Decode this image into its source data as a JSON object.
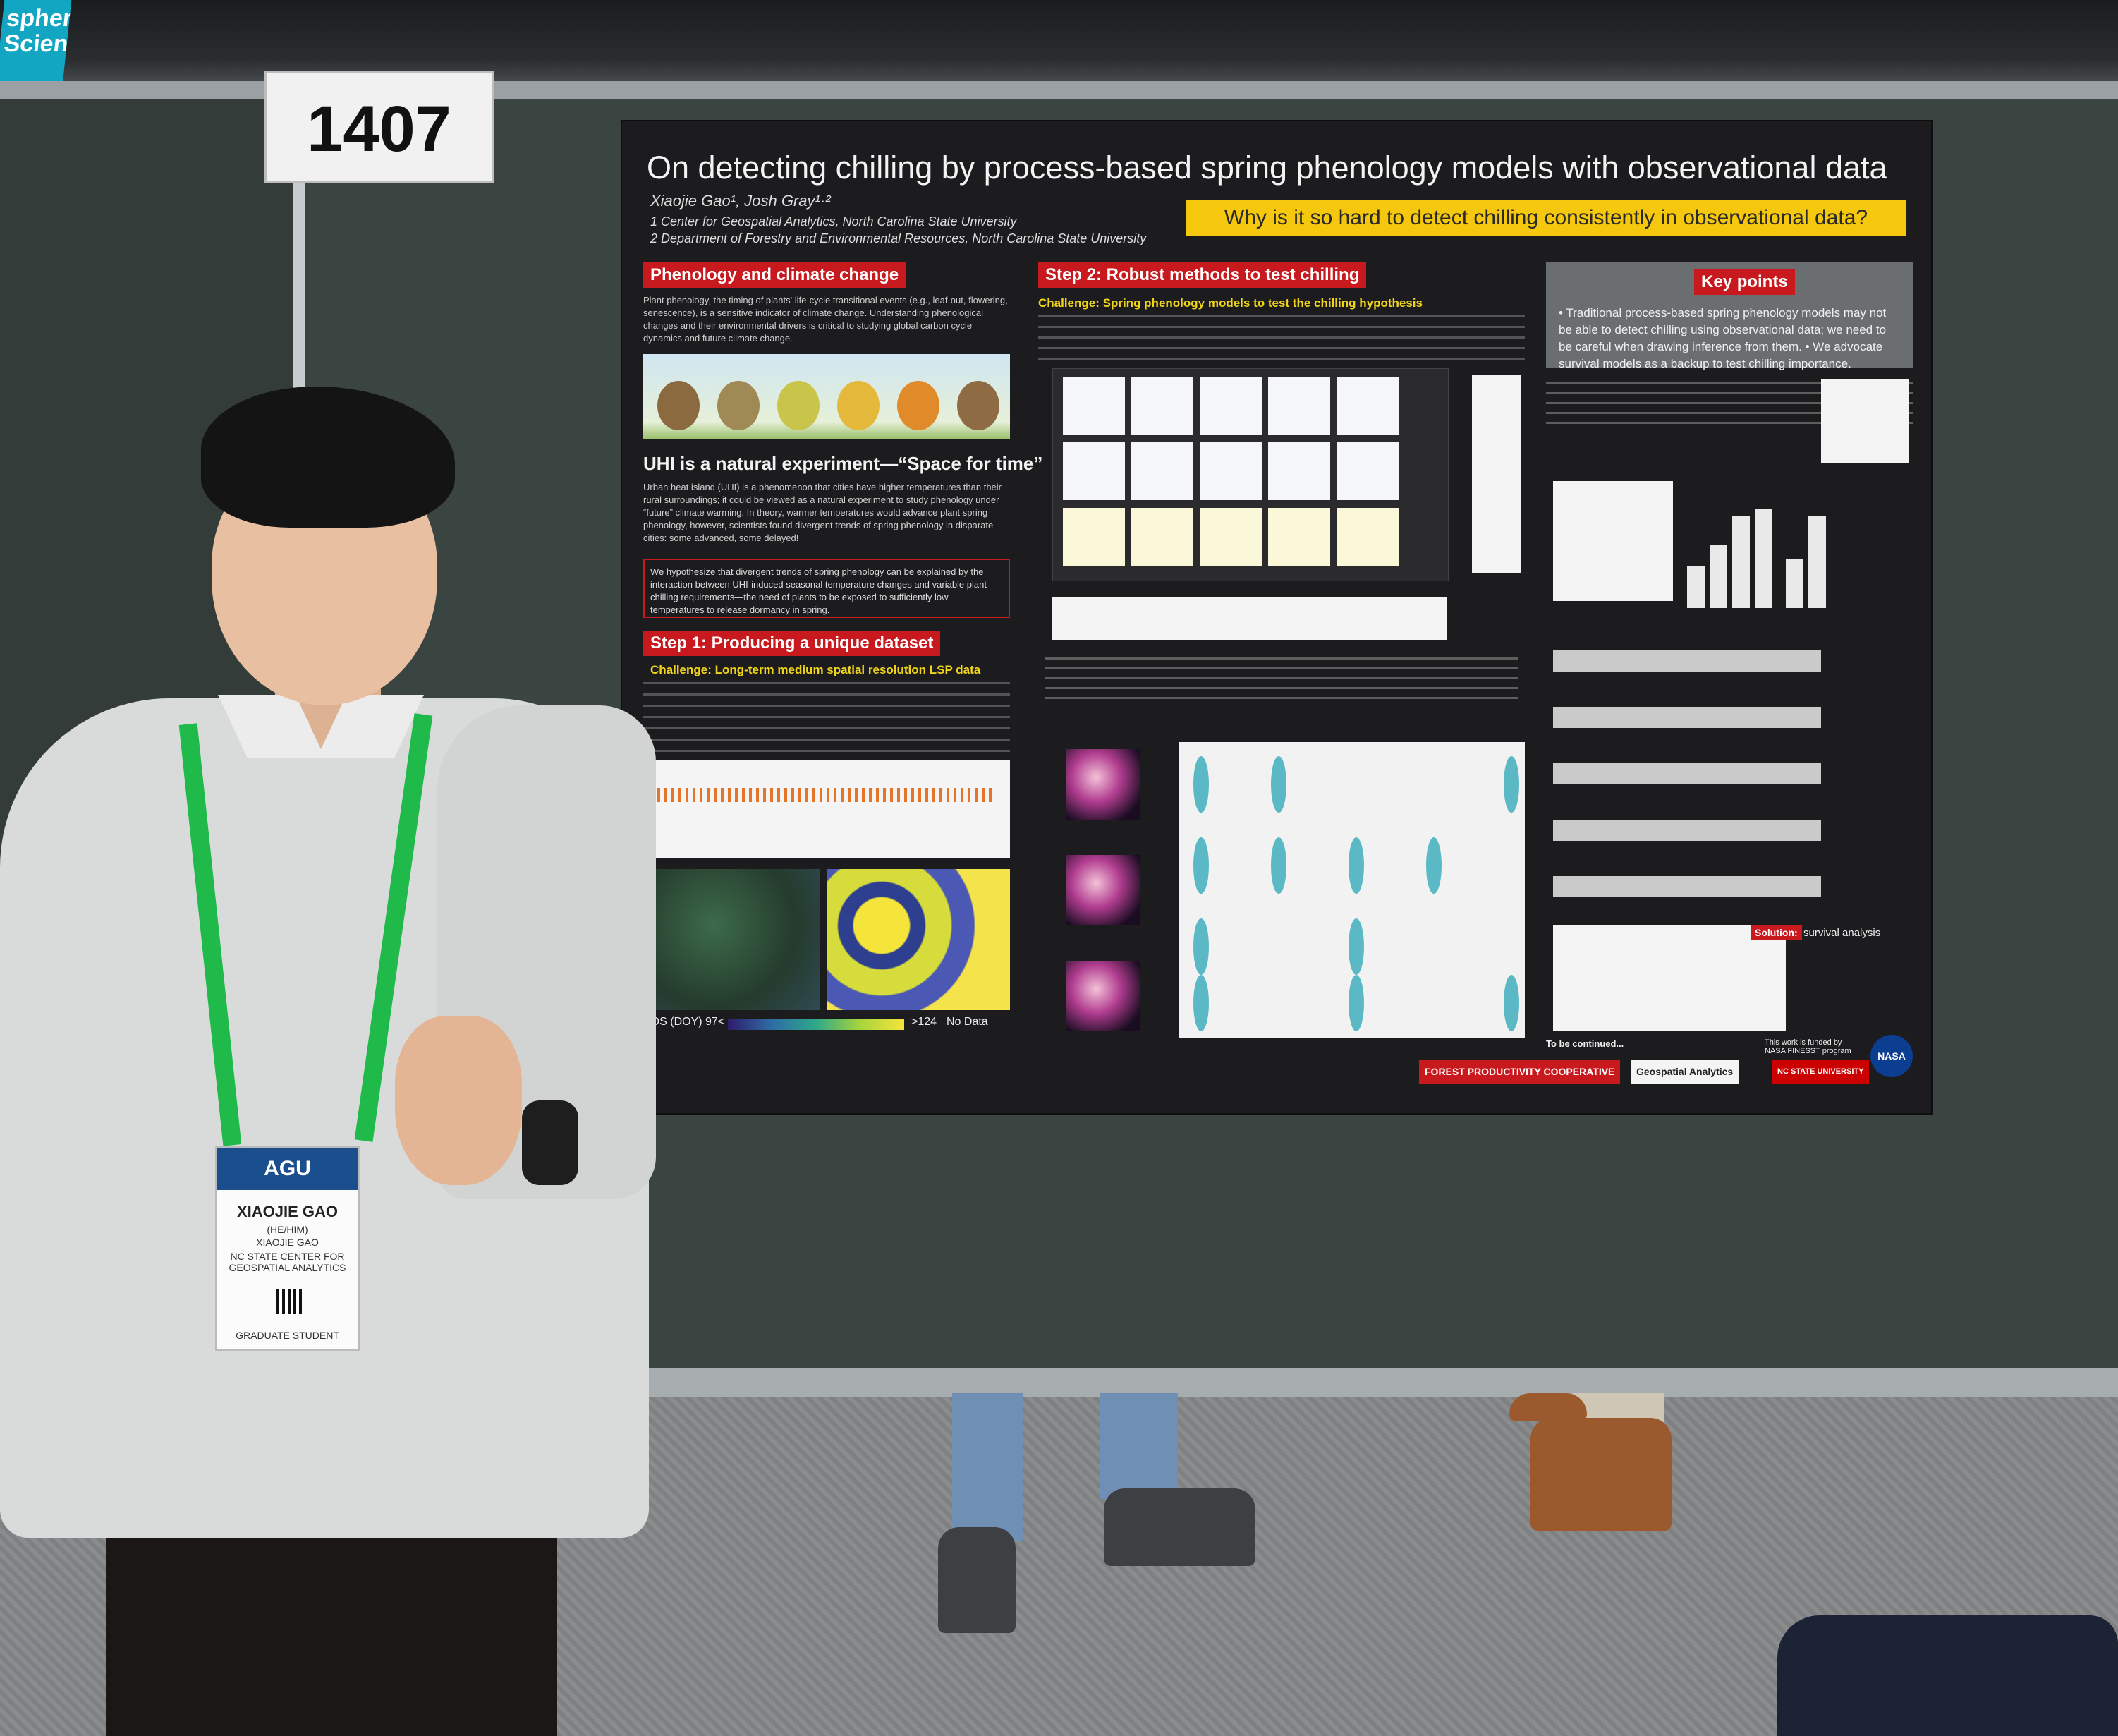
{
  "booth_sign": "1407",
  "banner_text": "spheric Sciences",
  "poster": {
    "title": "On detecting chilling by process-based spring phenology models with observational data",
    "authors": "Xiaojie Gao¹, Josh Gray¹·²",
    "affiliation_1": "1 Center for Geospatial Analytics, North Carolina State University",
    "affiliation_2": "2 Department of Forestry and Environmental Resources, North Carolina State University",
    "question": "Why is it so hard to detect chilling consistently in observational data?",
    "sec1_title": "Phenology and climate change",
    "sec1_body": "Plant phenology, the timing of plants' life-cycle transitional events (e.g., leaf-out, flowering, senescence), is a sensitive indicator of climate change. Understanding phenological changes and their environmental drivers is critical to studying global carbon cycle dynamics and future climate change.",
    "uhi_title": "UHI is a natural experiment—“Space for time”",
    "uhi_body": "Urban heat island (UHI) is a phenomenon that cities have higher temperatures than their rural surroundings; it could be viewed as a natural experiment to study phenology under “future” climate warming. In theory, warmer temperatures would advance plant spring phenology, however, scientists found divergent trends of spring phenology in disparate cities: some advanced, some delayed!",
    "hypothesis": "We hypothesize that divergent trends of spring phenology can be explained by the interaction between UHI-induced seasonal temperature changes and variable plant chilling requirements—the need of plants to be exposed to sufficiently low temperatures to release dormancy in spring.",
    "step1_title": "Step 1: Producing a unique dataset",
    "step1_challenge": "Challenge: Long-term medium spatial resolution LSP data",
    "step2_title": "Step 2: Robust methods to test chilling",
    "step2_challenge": "Challenge: Spring phenology models to test the chilling hypothesis",
    "key_title": "Key points",
    "key_points": "• Traditional process-based spring phenology models may not be able to detect chilling using observational data; we need to be careful when drawing inference from them.  • We advocate survival models as a backup to test chilling importance.",
    "map_legend_left": "SOS (DOY)  97<",
    "map_legend_right": ">124",
    "map_legend_nodata": "No Data",
    "solution": "Solution:",
    "solution_text": "survival analysis",
    "to_be_continued": "To be continued...",
    "funding": "This work is funded by NASA FINESST program",
    "logo_fpc": "FOREST PRODUCTIVITY COOPERATIVE",
    "logo_cga": "Geospatial Analytics",
    "logo_ncsu": "NC STATE UNIVERSITY",
    "logo_nasa": "NASA"
  },
  "badge": {
    "header": "AGU",
    "name": "XIAOJIE GAO",
    "pronouns": "(HE/HIM)",
    "name2": "XIAOJIE GAO",
    "org": "NC STATE CENTER FOR GEOSPATIAL ANALYTICS",
    "role": "GRADUATE STUDENT"
  },
  "colors": {
    "poster_bg": "#1c1c1f",
    "header_red": "#c8191e",
    "highlight_yellow": "#f5c80e",
    "lanyard_green": "#1fba4a"
  }
}
